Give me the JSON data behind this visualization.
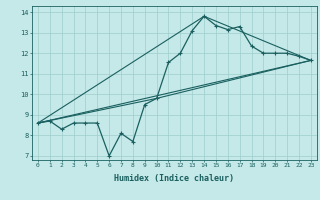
{
  "xlabel": "Humidex (Indice chaleur)",
  "bg_color": "#c5e8e8",
  "grid_color": "#9ecece",
  "line_color": "#1a6060",
  "xlim": [
    -0.5,
    23.5
  ],
  "ylim": [
    6.8,
    14.3
  ],
  "xticks": [
    0,
    1,
    2,
    3,
    4,
    5,
    6,
    7,
    8,
    9,
    10,
    11,
    12,
    13,
    14,
    15,
    16,
    17,
    18,
    19,
    20,
    21,
    22,
    23
  ],
  "yticks": [
    7,
    8,
    9,
    10,
    11,
    12,
    13,
    14
  ],
  "series1_x": [
    0,
    1,
    2,
    3,
    4,
    5,
    6,
    7,
    8,
    9,
    10,
    11,
    12,
    13,
    14,
    15,
    16,
    17,
    18,
    19,
    20,
    21,
    22,
    23
  ],
  "series1_y": [
    8.6,
    8.7,
    8.3,
    8.6,
    8.6,
    8.6,
    7.0,
    8.1,
    7.7,
    9.5,
    9.8,
    11.55,
    12.0,
    13.1,
    13.8,
    13.35,
    13.15,
    13.3,
    12.35,
    12.0,
    12.0,
    12.0,
    11.85,
    11.65
  ],
  "line1_x": [
    0,
    23
  ],
  "line1_y": [
    8.6,
    11.65
  ],
  "line2_x": [
    0,
    10,
    23
  ],
  "line2_y": [
    8.6,
    9.8,
    11.65
  ],
  "line3_x": [
    0,
    14,
    23
  ],
  "line3_y": [
    8.6,
    13.8,
    11.65
  ]
}
